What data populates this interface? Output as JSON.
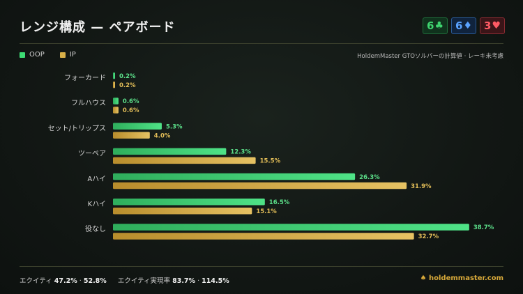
{
  "title": "レンジ構成 — ペアボード",
  "board": [
    {
      "rank": "6",
      "suit": "♣",
      "suit_name": "club",
      "color": "#3fd46f"
    },
    {
      "rank": "6",
      "suit": "♦",
      "suit_name": "diamond",
      "color": "#5aa3ff"
    },
    {
      "rank": "3",
      "suit": "♥",
      "suit_name": "heart",
      "color": "#ff5a64"
    }
  ],
  "legend": [
    {
      "label": "OOP",
      "color": "#3ddc74"
    },
    {
      "label": "IP",
      "color": "#d8b048"
    }
  ],
  "note": "HoldemMaster GTOソルバーの計算値 · レーキ未考慮",
  "footer": {
    "equity_label": "エクイティ",
    "equity_oop": "47.2%",
    "equity_ip": "52.8%",
    "realization_label": "エクイティ実現率",
    "realization_oop": "83.7%",
    "realization_ip": "114.5%",
    "separator": "·",
    "brand": "holdemmaster.com"
  },
  "chart_data": {
    "type": "bar",
    "orientation": "horizontal",
    "categories": [
      "フォーカード",
      "フルハウス",
      "セット/トリップス",
      "ツーペア",
      "Aハイ",
      "Kハイ",
      "役なし"
    ],
    "series": [
      {
        "name": "OOP",
        "values": [
          0.2,
          0.6,
          5.3,
          12.3,
          26.3,
          16.5,
          38.7
        ],
        "color": "#3ddc74"
      },
      {
        "name": "IP",
        "values": [
          0.2,
          0.6,
          4.0,
          15.5,
          31.9,
          15.1,
          32.7
        ],
        "color": "#d8b048"
      }
    ],
    "value_suffix": "%",
    "xlim": [
      0,
      40
    ],
    "grid": false,
    "legend": "top-left"
  }
}
